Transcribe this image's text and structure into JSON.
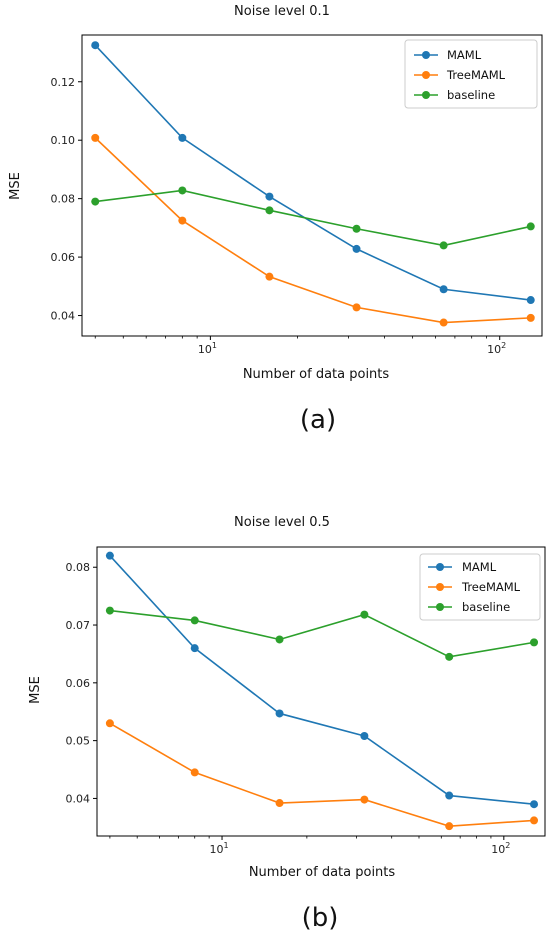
{
  "chart_data": [
    {
      "type": "line",
      "title": "Noise level  0.1",
      "xlabel": "Number of data points",
      "ylabel": "MSE",
      "xscale": "log",
      "xlim": [
        3.6,
        140
      ],
      "ylim": [
        0.033,
        0.136
      ],
      "yticks": [
        0.04,
        0.06,
        0.08,
        0.1,
        0.12
      ],
      "ytick_labels": [
        "0.04",
        "0.06",
        "0.08",
        "0.10",
        "0.12"
      ],
      "xticks": [
        10,
        100
      ],
      "legend_position": "top-right",
      "x": [
        4,
        8,
        16,
        32,
        64,
        128
      ],
      "series": [
        {
          "name": "MAML",
          "color": "#1f77b4",
          "values": [
            0.1325,
            0.1008,
            0.0807,
            0.0628,
            0.049,
            0.0453
          ]
        },
        {
          "name": "TreeMAML",
          "color": "#ff7f0e",
          "values": [
            0.1008,
            0.0725,
            0.0533,
            0.0428,
            0.0376,
            0.0392
          ]
        },
        {
          "name": "baseline",
          "color": "#2ca02c",
          "values": [
            0.079,
            0.0828,
            0.076,
            0.0697,
            0.064,
            0.0705
          ]
        }
      ],
      "caption": "(a)"
    },
    {
      "type": "line",
      "title": "Noise level  0.5",
      "xlabel": "Number of data points",
      "ylabel": "MSE",
      "xscale": "log",
      "xlim": [
        3.6,
        140
      ],
      "ylim": [
        0.0335,
        0.0835
      ],
      "yticks": [
        0.04,
        0.05,
        0.06,
        0.07,
        0.08
      ],
      "ytick_labels": [
        "0.04",
        "0.05",
        "0.06",
        "0.07",
        "0.08"
      ],
      "xticks": [
        10,
        100
      ],
      "legend_position": "top-right",
      "x": [
        4,
        8,
        16,
        32,
        64,
        128
      ],
      "series": [
        {
          "name": "MAML",
          "color": "#1f77b4",
          "values": [
            0.082,
            0.066,
            0.0547,
            0.0508,
            0.0405,
            0.039
          ]
        },
        {
          "name": "TreeMAML",
          "color": "#ff7f0e",
          "values": [
            0.053,
            0.0445,
            0.0392,
            0.0398,
            0.0352,
            0.0362
          ]
        },
        {
          "name": "baseline",
          "color": "#2ca02c",
          "values": [
            0.0725,
            0.0708,
            0.0675,
            0.0718,
            0.0645,
            0.067
          ]
        }
      ],
      "caption": "(b)"
    }
  ]
}
